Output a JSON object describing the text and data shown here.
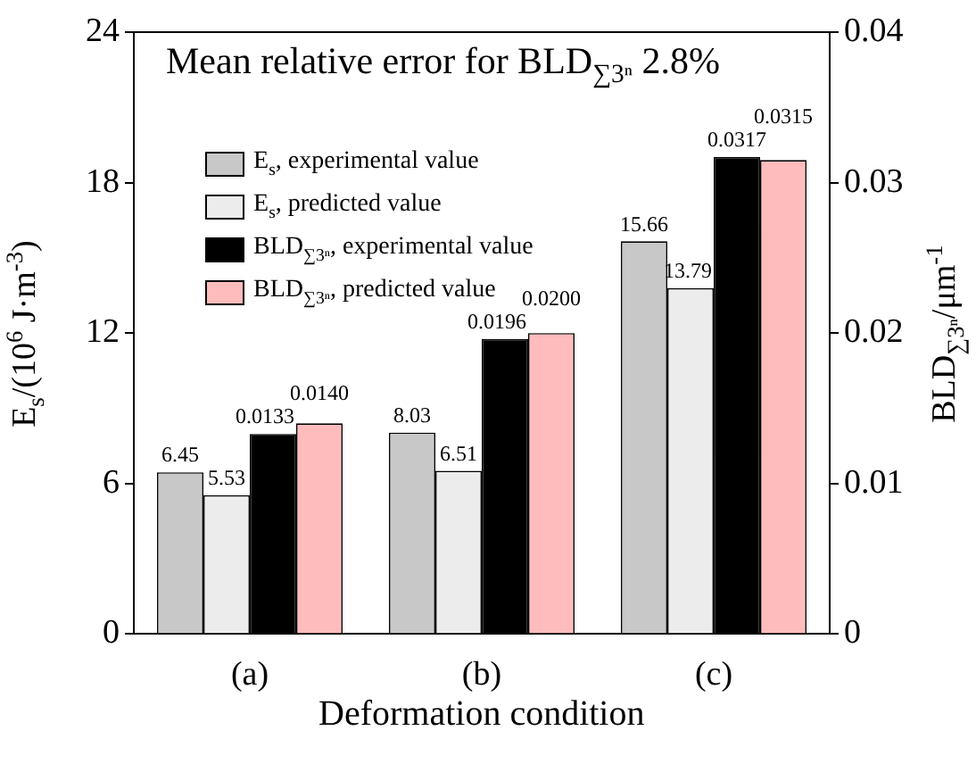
{
  "chart_data": {
    "type": "bar",
    "title": "Mean relative error for BLD$_{∑3ⁿ}$ 2.8%",
    "xlabel": "Deformation condition",
    "ylabel": "E$_{s}$/(10$^{6}$ J·m$^{-3}$)",
    "y2label": "BLD$_{∑3ⁿ}$/μm$^{-1}$",
    "categories": [
      "(a)",
      "(b)",
      "(c)"
    ],
    "series": [
      {
        "name": "E$_{s}$, experimental value",
        "color": "#c8c8c8",
        "values": [
          6.45,
          8.03,
          15.66
        ],
        "value_labels": [
          "6.45",
          "8.03",
          "15.66"
        ]
      },
      {
        "name": "E$_{s}$, predicted value",
        "color": "#ececec",
        "values": [
          5.53,
          6.51,
          13.79
        ],
        "value_labels": [
          "5.53",
          "6.51",
          "13.79"
        ]
      },
      {
        "name": "BLD$_{∑3ⁿ}$, experimental value",
        "color": "#000000",
        "axis": "y2",
        "values": [
          0.0133,
          0.0196,
          0.0317
        ],
        "value_labels": [
          "0.0133",
          "0.0196",
          "0.0317"
        ]
      },
      {
        "name": "BLD$_{∑3ⁿ}$, predicted value",
        "color": "#ffbcbc",
        "axis": "y2",
        "values": [
          0.014,
          0.02,
          0.0315
        ],
        "value_labels": [
          "0.0140",
          "0.0200",
          "0.0315"
        ]
      }
    ],
    "ylim": [
      0,
      24
    ],
    "yticks": [
      0,
      6,
      12,
      18,
      24
    ],
    "y2lim": [
      0,
      0.04
    ],
    "y2ticks": [
      0,
      0.01,
      0.02,
      0.03,
      0.04
    ],
    "legend": "top left",
    "grid": false
  }
}
